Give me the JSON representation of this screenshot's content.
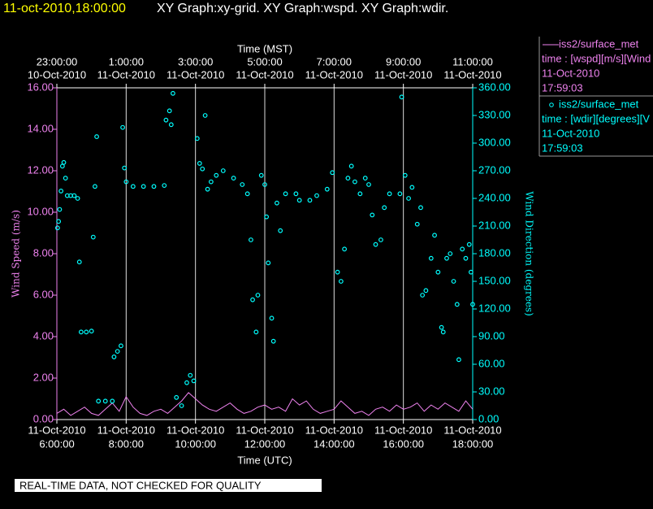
{
  "chart_data": {
    "type": "scatter",
    "title_time": "11-oct-2010,18:00:00",
    "title": "XY Graph:xy-grid.  XY Graph:wspd.  XY Graph:wdir.",
    "x_label": "Time (UTC)",
    "x2_label": "Time (MST)",
    "y_label": "Wind Speed (m/s)",
    "y2_label": "Wind Direction (degrees)",
    "footer": "REAL-TIME DATA, NOT CHECKED FOR QUALITY",
    "grid": true,
    "xlim": [
      6,
      18
    ],
    "xticks": [
      {
        "value": 6,
        "label": [
          "11-Oct-2010",
          "6:00:00"
        ]
      },
      {
        "value": 8,
        "label": [
          "11-Oct-2010",
          "8:00:00"
        ]
      },
      {
        "value": 10,
        "label": [
          "11-Oct-2010",
          "10:00:00"
        ]
      },
      {
        "value": 12,
        "label": [
          "11-Oct-2010",
          "12:00:00"
        ]
      },
      {
        "value": 14,
        "label": [
          "11-Oct-2010",
          "14:00:00"
        ]
      },
      {
        "value": 16,
        "label": [
          "11-Oct-2010",
          "16:00:00"
        ]
      },
      {
        "value": 18,
        "label": [
          "11-Oct-2010",
          "18:00:00"
        ]
      }
    ],
    "x2lim": [
      -1,
      11
    ],
    "x2ticks": [
      {
        "value": -1,
        "label": [
          "23:00:00",
          "10-Oct-2010"
        ]
      },
      {
        "value": 1,
        "label": [
          "1:00:00",
          "11-Oct-2010"
        ]
      },
      {
        "value": 3,
        "label": [
          "3:00:00",
          "11-Oct-2010"
        ]
      },
      {
        "value": 5,
        "label": [
          "5:00:00",
          "11-Oct-2010"
        ]
      },
      {
        "value": 7,
        "label": [
          "7:00:00",
          "11-Oct-2010"
        ]
      },
      {
        "value": 9,
        "label": [
          "9:00:00",
          "11-Oct-2010"
        ]
      },
      {
        "value": 11,
        "label": [
          "11:00:00",
          "11-Oct-2010"
        ]
      }
    ],
    "ylim": [
      0,
      16
    ],
    "yticks": [
      {
        "value": 0,
        "label": "0.00"
      },
      {
        "value": 2,
        "label": "2.00"
      },
      {
        "value": 4,
        "label": "4.00"
      },
      {
        "value": 6,
        "label": "6.00"
      },
      {
        "value": 8,
        "label": "8.00"
      },
      {
        "value": 10,
        "label": "10.00"
      },
      {
        "value": 12,
        "label": "12.00"
      },
      {
        "value": 14,
        "label": "14.00"
      },
      {
        "value": 16,
        "label": "16.00"
      }
    ],
    "y2lim": [
      0,
      360
    ],
    "y2ticks": [
      {
        "value": 0,
        "label": "0.00"
      },
      {
        "value": 30,
        "label": "30.00"
      },
      {
        "value": 60,
        "label": "60.00"
      },
      {
        "value": 90,
        "label": "90.00"
      },
      {
        "value": 120,
        "label": "120.00"
      },
      {
        "value": 150,
        "label": "150.00"
      },
      {
        "value": 180,
        "label": "180.00"
      },
      {
        "value": 210,
        "label": "210.00"
      },
      {
        "value": 240,
        "label": "240.00"
      },
      {
        "value": 270,
        "label": "270.00"
      },
      {
        "value": 300,
        "label": "300.00"
      },
      {
        "value": 330,
        "label": "330.00"
      },
      {
        "value": 360,
        "label": "360.00"
      }
    ],
    "series": [
      {
        "name": "iss2/surface_met",
        "color": "#ee82ee",
        "mark": "line",
        "axis": "y",
        "description": [
          "time : [wspd][m/s][Wind",
          "11-Oct-2010",
          "17:59:03"
        ],
        "x": [
          6,
          6.2,
          6.4,
          6.6,
          6.8,
          7,
          7.2,
          7.4,
          7.6,
          7.8,
          8,
          8.2,
          8.4,
          8.6,
          8.8,
          9,
          9.2,
          9.4,
          9.6,
          9.8,
          10,
          10.2,
          10.4,
          10.6,
          10.8,
          11,
          11.2,
          11.4,
          11.6,
          11.8,
          12,
          12.2,
          12.4,
          12.6,
          12.8,
          13,
          13.2,
          13.4,
          13.6,
          13.8,
          14,
          14.2,
          14.4,
          14.6,
          14.8,
          15,
          15.2,
          15.4,
          15.6,
          15.8,
          16,
          16.2,
          16.4,
          16.6,
          16.8,
          17,
          17.2,
          17.4,
          17.6,
          17.8,
          18
        ],
        "values": [
          0.3,
          0.5,
          0.2,
          0.4,
          0.6,
          0.3,
          0.2,
          0.5,
          0.8,
          0.4,
          1.1,
          0.6,
          0.3,
          0.2,
          0.4,
          0.5,
          0.3,
          0.6,
          0.9,
          1.3,
          1.0,
          0.7,
          0.5,
          0.4,
          0.6,
          0.8,
          0.5,
          0.3,
          0.4,
          0.6,
          0.7,
          0.5,
          0.6,
          0.4,
          1.0,
          0.7,
          0.9,
          0.5,
          0.3,
          0.4,
          0.5,
          0.9,
          0.6,
          0.3,
          0.4,
          0.2,
          0.5,
          0.6,
          0.4,
          0.7,
          0.5,
          0.6,
          0.8,
          0.4,
          0.7,
          0.5,
          0.8,
          0.6,
          0.4,
          0.9,
          0.5
        ]
      },
      {
        "name": "iss2/surface_met",
        "color": "#00ffff",
        "mark": "circle",
        "axis": "y2",
        "description": [
          "time : [wdir][degrees][V",
          "11-Oct-2010",
          "17:59:03"
        ],
        "x": [
          6.02,
          6.05,
          6.08,
          6.12,
          6.16,
          6.2,
          6.25,
          6.3,
          6.4,
          6.5,
          6.6,
          6.65,
          6.7,
          6.85,
          7.0,
          7.05,
          7.1,
          7.15,
          7.2,
          7.4,
          7.6,
          7.65,
          7.75,
          7.85,
          7.9,
          7.95,
          8.0,
          8.2,
          8.5,
          8.8,
          9.1,
          9.15,
          9.25,
          9.3,
          9.35,
          9.45,
          9.6,
          9.75,
          9.85,
          9.95,
          10.05,
          10.12,
          10.2,
          10.28,
          10.35,
          10.45,
          10.6,
          10.8,
          11.1,
          11.35,
          11.5,
          11.6,
          11.65,
          11.75,
          11.8,
          11.9,
          12.0,
          12.05,
          12.1,
          12.2,
          12.25,
          12.35,
          12.45,
          12.6,
          12.9,
          13.0,
          13.3,
          13.5,
          13.8,
          13.95,
          14.1,
          14.2,
          14.3,
          14.4,
          14.5,
          14.6,
          14.75,
          14.9,
          15.0,
          15.1,
          15.2,
          15.35,
          15.45,
          15.6,
          15.9,
          15.95,
          16.05,
          16.15,
          16.25,
          16.4,
          16.5,
          16.55,
          16.65,
          16.8,
          16.9,
          17.0,
          17.1,
          17.15,
          17.25,
          17.35,
          17.45,
          17.55,
          17.6,
          17.7,
          17.8,
          17.9,
          17.95,
          18.0
        ],
        "values": [
          208,
          215,
          228,
          248,
          275,
          279,
          262,
          243,
          243,
          243,
          240,
          171,
          95,
          95,
          96,
          198,
          253,
          307,
          20,
          20,
          20,
          68,
          74,
          80,
          317,
          273,
          258,
          253,
          253,
          253,
          254,
          325,
          335,
          320,
          354,
          24,
          15,
          40,
          48,
          42,
          305,
          278,
          272,
          330,
          250,
          258,
          265,
          270,
          262,
          255,
          245,
          195,
          130,
          95,
          135,
          265,
          255,
          220,
          170,
          110,
          85,
          235,
          205,
          245,
          245,
          238,
          238,
          243,
          250,
          268,
          160,
          150,
          185,
          262,
          275,
          258,
          245,
          262,
          255,
          222,
          190,
          195,
          230,
          245,
          245,
          350,
          265,
          240,
          252,
          212,
          230,
          135,
          140,
          175,
          200,
          160,
          100,
          95,
          175,
          180,
          150,
          125,
          65,
          185,
          175,
          190,
          160,
          125
        ]
      }
    ]
  }
}
